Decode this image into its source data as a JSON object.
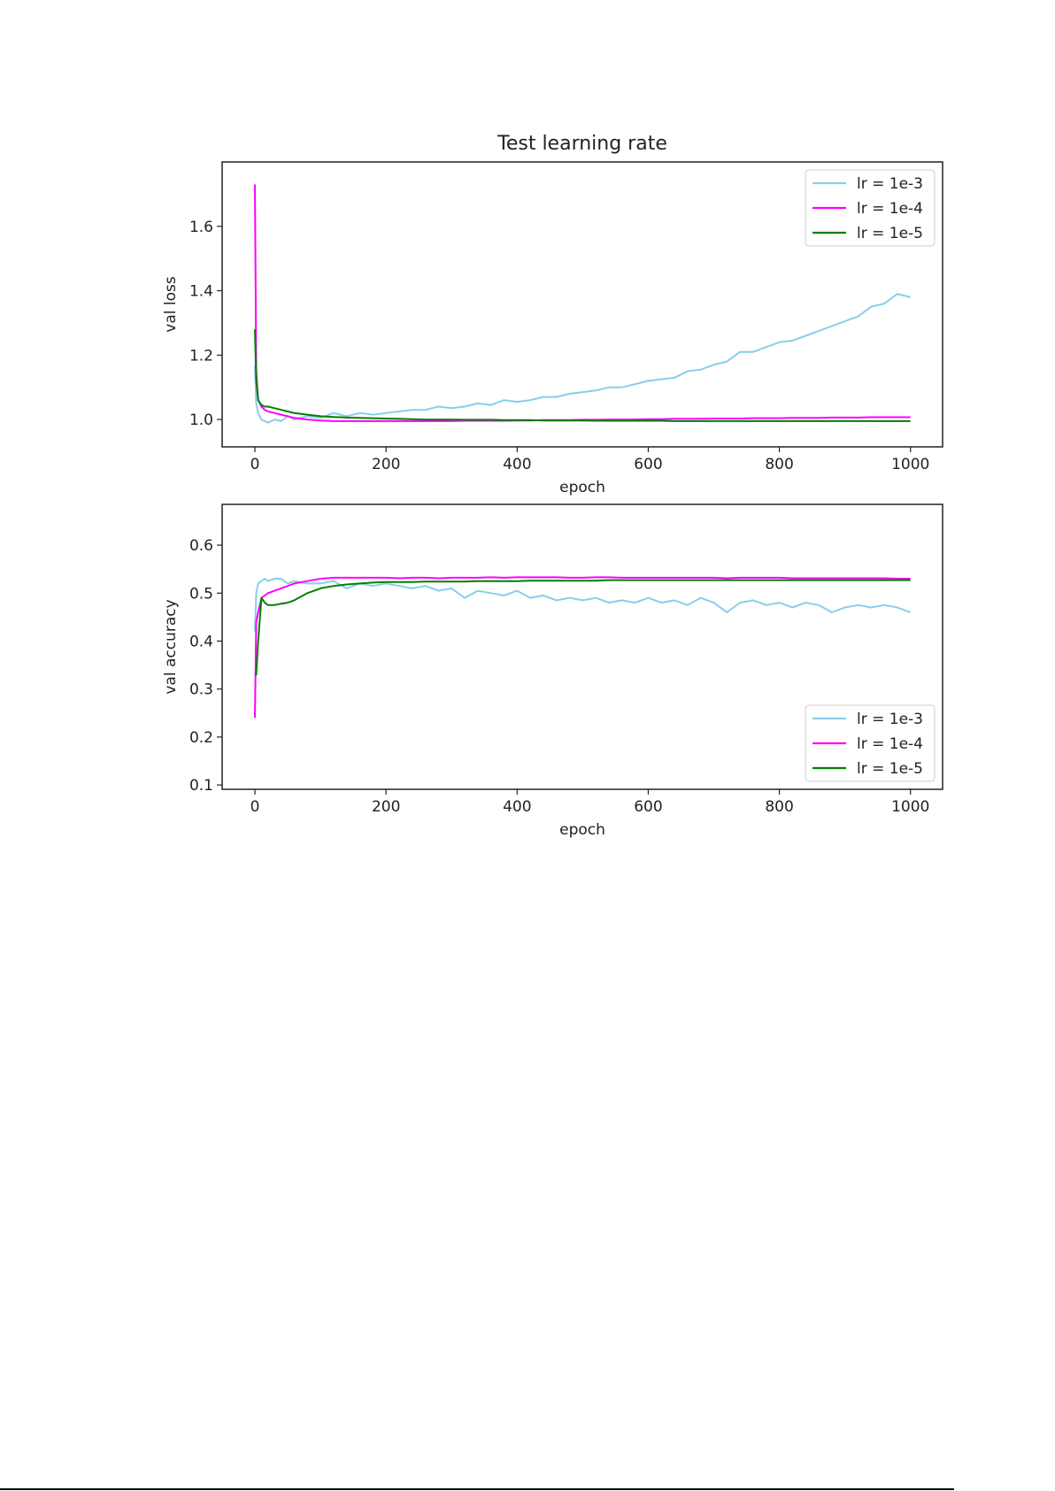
{
  "chart_data": [
    {
      "type": "line",
      "title": "Test learning rate",
      "xlabel": "epoch",
      "ylabel": "val loss",
      "xlim": [
        -50,
        1049
      ],
      "ylim": [
        0.915,
        1.8
      ],
      "xticks": [
        0,
        200,
        400,
        600,
        800,
        1000
      ],
      "xtick_labels": [
        "0",
        "200",
        "400",
        "600",
        "800",
        "1000"
      ],
      "yticks": [
        1.0,
        1.2,
        1.4,
        1.6
      ],
      "ytick_labels": [
        "1.0",
        "1.2",
        "1.4",
        "1.6"
      ],
      "grid": false,
      "legend_placement": "top-right",
      "x": [
        0,
        2,
        5,
        10,
        15,
        20,
        30,
        40,
        50,
        60,
        80,
        100,
        120,
        140,
        160,
        180,
        200,
        220,
        240,
        260,
        280,
        300,
        320,
        340,
        360,
        380,
        400,
        420,
        440,
        460,
        480,
        500,
        520,
        540,
        560,
        580,
        600,
        620,
        640,
        660,
        680,
        700,
        720,
        740,
        760,
        780,
        800,
        820,
        840,
        860,
        880,
        900,
        920,
        940,
        960,
        980,
        1000
      ],
      "series": [
        {
          "name": "lr = 1e-3",
          "color": "#87CEEB",
          "values": [
            1.17,
            1.05,
            1.02,
            1.0,
            0.995,
            0.99,
            1.0,
            0.995,
            1.01,
            1.0,
            1.01,
            1.005,
            1.02,
            1.01,
            1.02,
            1.015,
            1.02,
            1.025,
            1.03,
            1.03,
            1.04,
            1.035,
            1.04,
            1.05,
            1.045,
            1.06,
            1.055,
            1.06,
            1.07,
            1.07,
            1.08,
            1.085,
            1.09,
            1.1,
            1.1,
            1.11,
            1.12,
            1.125,
            1.13,
            1.15,
            1.155,
            1.17,
            1.18,
            1.21,
            1.21,
            1.225,
            1.24,
            1.245,
            1.26,
            1.275,
            1.29,
            1.305,
            1.32,
            1.35,
            1.36,
            1.39,
            1.38
          ]
        },
        {
          "name": "lr = 1e-4",
          "color": "#FF00FF",
          "values": [
            1.73,
            1.15,
            1.06,
            1.04,
            1.03,
            1.025,
            1.02,
            1.015,
            1.01,
            1.005,
            1.0,
            0.997,
            0.995,
            0.995,
            0.995,
            0.995,
            0.995,
            0.995,
            0.995,
            0.995,
            0.995,
            0.995,
            0.996,
            0.996,
            0.996,
            0.996,
            0.997,
            0.997,
            0.998,
            0.998,
            0.998,
            0.999,
            0.999,
            1.0,
            1.0,
            1.0,
            1.001,
            1.001,
            1.002,
            1.002,
            1.002,
            1.003,
            1.003,
            1.003,
            1.004,
            1.004,
            1.004,
            1.005,
            1.005,
            1.005,
            1.006,
            1.006,
            1.006,
            1.007,
            1.007,
            1.007,
            1.007
          ]
        },
        {
          "name": "lr = 1e-5",
          "color": "#008000",
          "values": [
            1.28,
            1.12,
            1.06,
            1.045,
            1.04,
            1.04,
            1.035,
            1.03,
            1.025,
            1.02,
            1.015,
            1.01,
            1.008,
            1.006,
            1.005,
            1.004,
            1.003,
            1.002,
            1.001,
            1.0,
            1.0,
            1.0,
            0.999,
            0.999,
            0.999,
            0.998,
            0.998,
            0.998,
            0.997,
            0.997,
            0.997,
            0.997,
            0.996,
            0.996,
            0.996,
            0.996,
            0.996,
            0.996,
            0.995,
            0.995,
            0.995,
            0.995,
            0.995,
            0.995,
            0.995,
            0.995,
            0.995,
            0.995,
            0.995,
            0.995,
            0.995,
            0.995,
            0.995,
            0.995,
            0.995,
            0.995,
            0.995
          ]
        }
      ]
    },
    {
      "type": "line",
      "title": "",
      "xlabel": "epoch",
      "ylabel": "val accuracy",
      "xlim": [
        -50,
        1049
      ],
      "ylim": [
        0.091,
        0.685
      ],
      "xticks": [
        0,
        200,
        400,
        600,
        800,
        1000
      ],
      "xtick_labels": [
        "0",
        "200",
        "400",
        "600",
        "800",
        "1000"
      ],
      "yticks": [
        0.1,
        0.2,
        0.3,
        0.4,
        0.5,
        0.6
      ],
      "ytick_labels": [
        "0.1",
        "0.2",
        "0.3",
        "0.4",
        "0.5",
        "0.6"
      ],
      "grid": false,
      "legend_placement": "bottom-right",
      "x": [
        0,
        2,
        5,
        10,
        15,
        20,
        30,
        40,
        50,
        60,
        80,
        100,
        120,
        140,
        160,
        180,
        200,
        220,
        240,
        260,
        280,
        300,
        320,
        340,
        360,
        380,
        400,
        420,
        440,
        460,
        480,
        500,
        520,
        540,
        560,
        580,
        600,
        620,
        640,
        660,
        680,
        700,
        720,
        740,
        760,
        780,
        800,
        820,
        840,
        860,
        880,
        900,
        920,
        940,
        960,
        980,
        1000
      ],
      "series": [
        {
          "name": "lr = 1e-3",
          "color": "#87CEEB",
          "values": [
            0.42,
            0.5,
            0.52,
            0.525,
            0.53,
            0.525,
            0.53,
            0.53,
            0.52,
            0.525,
            0.52,
            0.52,
            0.525,
            0.51,
            0.52,
            0.515,
            0.52,
            0.515,
            0.51,
            0.515,
            0.505,
            0.51,
            0.49,
            0.505,
            0.5,
            0.495,
            0.505,
            0.49,
            0.495,
            0.485,
            0.49,
            0.485,
            0.49,
            0.48,
            0.485,
            0.48,
            0.49,
            0.48,
            0.485,
            0.475,
            0.49,
            0.48,
            0.46,
            0.48,
            0.485,
            0.475,
            0.48,
            0.47,
            0.48,
            0.475,
            0.46,
            0.47,
            0.475,
            0.47,
            0.475,
            0.47,
            0.46
          ]
        },
        {
          "name": "lr = 1e-4",
          "color": "#FF00FF",
          "values": [
            0.24,
            0.44,
            0.46,
            0.49,
            0.495,
            0.5,
            0.505,
            0.51,
            0.515,
            0.52,
            0.525,
            0.53,
            0.532,
            0.532,
            0.532,
            0.532,
            0.532,
            0.531,
            0.532,
            0.532,
            0.531,
            0.532,
            0.532,
            0.532,
            0.533,
            0.532,
            0.533,
            0.533,
            0.533,
            0.533,
            0.532,
            0.532,
            0.533,
            0.533,
            0.532,
            0.532,
            0.532,
            0.532,
            0.532,
            0.532,
            0.532,
            0.532,
            0.531,
            0.532,
            0.532,
            0.532,
            0.532,
            0.531,
            0.531,
            0.531,
            0.531,
            0.531,
            0.531,
            0.531,
            0.531,
            0.53,
            0.53
          ]
        },
        {
          "name": "lr = 1e-5",
          "color": "#008000",
          "values": [
            0.33,
            0.33,
            0.4,
            0.49,
            0.48,
            0.475,
            0.475,
            0.478,
            0.48,
            0.485,
            0.5,
            0.51,
            0.515,
            0.518,
            0.52,
            0.522,
            0.523,
            0.523,
            0.523,
            0.524,
            0.524,
            0.524,
            0.524,
            0.525,
            0.525,
            0.525,
            0.525,
            0.526,
            0.526,
            0.526,
            0.526,
            0.526,
            0.526,
            0.527,
            0.527,
            0.527,
            0.527,
            0.527,
            0.527,
            0.527,
            0.527,
            0.527,
            0.527,
            0.527,
            0.527,
            0.527,
            0.527,
            0.527,
            0.527,
            0.527,
            0.527,
            0.527,
            0.527,
            0.527,
            0.527,
            0.527,
            0.527
          ]
        }
      ]
    }
  ]
}
